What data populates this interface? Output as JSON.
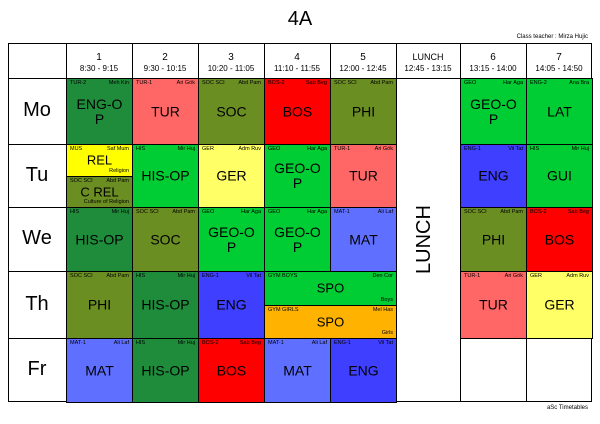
{
  "title": "4A",
  "class_teacher": "Class teacher : Mirza Hujic",
  "footer": "aSc Timetables",
  "periods": [
    {
      "num": "1",
      "time": "8:30 - 9:15"
    },
    {
      "num": "2",
      "time": "9:30 - 10:15"
    },
    {
      "num": "3",
      "time": "10:20 - 11:05"
    },
    {
      "num": "4",
      "time": "11:10 - 11:55"
    },
    {
      "num": "5",
      "time": "12:00 - 12:45"
    },
    {
      "num": "LUNCH",
      "time": "12:45 - 13:15"
    },
    {
      "num": "6",
      "time": "13:15 - 14:00"
    },
    {
      "num": "7",
      "time": "14:05 - 14:50"
    }
  ],
  "lunch_label": "LUNCH",
  "days": [
    "Mo",
    "Tu",
    "We",
    "Th",
    "Fr"
  ],
  "colors": {
    "dark_green": "#1e8c3a",
    "red": "#ff5f5f",
    "olive": "#6b8e23",
    "bright_red": "#ff0000",
    "bright_green": "#00cc33",
    "yellow": "#ffff66",
    "blue": "#4040ff",
    "light_blue": "#5f6fff",
    "orange": "#ffb300"
  },
  "lessons": [
    {
      "day": 0,
      "period": 0,
      "col": 0,
      "span": 1,
      "part": 0,
      "parts": 1,
      "color": "#1e8c3a",
      "tl": "TUR-2",
      "tr": "Meh Kin",
      "subject": "ENG-O P",
      "br": ""
    },
    {
      "day": 0,
      "period": 1,
      "col": 1,
      "span": 1,
      "part": 0,
      "parts": 1,
      "color": "#ff6666",
      "tl": "TUR-1",
      "tr": "Ari Gök",
      "subject": "TUR",
      "br": ""
    },
    {
      "day": 0,
      "period": 2,
      "col": 2,
      "span": 1,
      "part": 0,
      "parts": 1,
      "color": "#6b8e23",
      "tl": "SOC SCI",
      "tr": "Abd Pam",
      "subject": "SOC",
      "br": ""
    },
    {
      "day": 0,
      "period": 3,
      "col": 3,
      "span": 1,
      "part": 0,
      "parts": 1,
      "color": "#ff0000",
      "tl": "BOS-2",
      "tr": "Sab Beg",
      "subject": "BOS",
      "br": ""
    },
    {
      "day": 0,
      "period": 4,
      "col": 4,
      "span": 1,
      "part": 0,
      "parts": 1,
      "color": "#6b8e23",
      "tl": "SOC SCI",
      "tr": "Abd Pam",
      "subject": "PHI",
      "br": ""
    },
    {
      "day": 0,
      "period": 6,
      "col": 6,
      "span": 1,
      "part": 0,
      "parts": 1,
      "color": "#00cc33",
      "tl": "GEO",
      "tr": "Har Aga",
      "subject": "GEO-O P",
      "br": ""
    },
    {
      "day": 0,
      "period": 7,
      "col": 7,
      "span": 1,
      "part": 0,
      "parts": 1,
      "color": "#00cc33",
      "tl": "ENG-2",
      "tr": "Ana Bra",
      "subject": "LAT",
      "br": ""
    },
    {
      "day": 1,
      "period": 0,
      "col": 0,
      "span": 1,
      "part": 0,
      "parts": 2,
      "color": "#ffff00",
      "tl": "MUS",
      "tr": "Saf Mum",
      "subject": "REL",
      "br": "Religion"
    },
    {
      "day": 1,
      "period": 0,
      "col": 0,
      "span": 1,
      "part": 1,
      "parts": 2,
      "color": "#6b8e23",
      "tl": "SOC SCI",
      "tr": "Abd Pam",
      "subject": "C REL",
      "br": "Culture of Religion"
    },
    {
      "day": 1,
      "period": 1,
      "col": 1,
      "span": 1,
      "part": 0,
      "parts": 1,
      "color": "#00cc33",
      "tl": "HIS",
      "tr": "Mir Huj",
      "subject": "HIS-OP",
      "br": ""
    },
    {
      "day": 1,
      "period": 2,
      "col": 2,
      "span": 1,
      "part": 0,
      "parts": 1,
      "color": "#ffff66",
      "tl": "GER",
      "tr": "Adm Ruv",
      "subject": "GER",
      "br": ""
    },
    {
      "day": 1,
      "period": 3,
      "col": 3,
      "span": 1,
      "part": 0,
      "parts": 1,
      "color": "#00cc33",
      "tl": "GEO",
      "tr": "Har Aga",
      "subject": "GEO-O P",
      "br": ""
    },
    {
      "day": 1,
      "period": 4,
      "col": 4,
      "span": 1,
      "part": 0,
      "parts": 1,
      "color": "#ff6666",
      "tl": "TUR-1",
      "tr": "Ari Gök",
      "subject": "TUR",
      "br": ""
    },
    {
      "day": 1,
      "period": 6,
      "col": 6,
      "span": 1,
      "part": 0,
      "parts": 1,
      "color": "#3f3fff",
      "tl": "ENG-1",
      "tr": "Vil Tat",
      "subject": "ENG",
      "br": ""
    },
    {
      "day": 1,
      "period": 7,
      "col": 7,
      "span": 1,
      "part": 0,
      "parts": 1,
      "color": "#00cc33",
      "tl": "HIS",
      "tr": "Mir Huj",
      "subject": "GUI",
      "br": ""
    },
    {
      "day": 2,
      "period": 0,
      "col": 0,
      "span": 1,
      "part": 0,
      "parts": 1,
      "color": "#1e8c3a",
      "tl": "HIS",
      "tr": "Mir Huj",
      "subject": "HIS-OP",
      "br": ""
    },
    {
      "day": 2,
      "period": 1,
      "col": 1,
      "span": 1,
      "part": 0,
      "parts": 1,
      "color": "#6b8e23",
      "tl": "SOC SCI",
      "tr": "Abd Pam",
      "subject": "SOC",
      "br": ""
    },
    {
      "day": 2,
      "period": 2,
      "col": 2,
      "span": 1,
      "part": 0,
      "parts": 1,
      "color": "#00cc33",
      "tl": "GEO",
      "tr": "Har Aga",
      "subject": "GEO-O P",
      "br": ""
    },
    {
      "day": 2,
      "period": 3,
      "col": 3,
      "span": 1,
      "part": 0,
      "parts": 1,
      "color": "#00cc33",
      "tl": "GEO",
      "tr": "Har Aga",
      "subject": "GEO-O P",
      "br": ""
    },
    {
      "day": 2,
      "period": 4,
      "col": 4,
      "span": 1,
      "part": 0,
      "parts": 1,
      "color": "#5f6fff",
      "tl": "MAT-1",
      "tr": "Ali Laf",
      "subject": "MAT",
      "br": ""
    },
    {
      "day": 2,
      "period": 6,
      "col": 6,
      "span": 1,
      "part": 0,
      "parts": 1,
      "color": "#6b8e23",
      "tl": "SOC SCI",
      "tr": "Abd Pam",
      "subject": "PHI",
      "br": ""
    },
    {
      "day": 2,
      "period": 7,
      "col": 7,
      "span": 1,
      "part": 0,
      "parts": 1,
      "color": "#ff0000",
      "tl": "BOS-2",
      "tr": "Sab Beg",
      "subject": "BOS",
      "br": ""
    },
    {
      "day": 3,
      "period": 0,
      "col": 0,
      "span": 1,
      "part": 0,
      "parts": 1,
      "color": "#6b8e23",
      "tl": "SOC SCI",
      "tr": "Abd Pam",
      "subject": "PHI",
      "br": ""
    },
    {
      "day": 3,
      "period": 1,
      "col": 1,
      "span": 1,
      "part": 0,
      "parts": 1,
      "color": "#1e8c3a",
      "tl": "HIS",
      "tr": "Mir Huj",
      "subject": "HIS-OP",
      "br": ""
    },
    {
      "day": 3,
      "period": 2,
      "col": 2,
      "span": 1,
      "part": 0,
      "parts": 1,
      "color": "#3f3fff",
      "tl": "ENG-1",
      "tr": "Vil Tat",
      "subject": "ENG",
      "br": ""
    },
    {
      "day": 3,
      "period": 3,
      "col": 3,
      "span": 2,
      "part": 0,
      "parts": 2,
      "color": "#00cc33",
      "tl": "GYM BOYS",
      "tr": "Den Cor",
      "subject": "SPO",
      "br": "Boys"
    },
    {
      "day": 3,
      "period": 3,
      "col": 3,
      "span": 2,
      "part": 1,
      "parts": 2,
      "color": "#ffb300",
      "tl": "GYM GIRLS",
      "tr": "Mel Has",
      "subject": "SPO",
      "br": "Girls"
    },
    {
      "day": 3,
      "period": 6,
      "col": 6,
      "span": 1,
      "part": 0,
      "parts": 1,
      "color": "#ff6666",
      "tl": "TUR-1",
      "tr": "Ari Gök",
      "subject": "TUR",
      "br": ""
    },
    {
      "day": 3,
      "period": 7,
      "col": 7,
      "span": 1,
      "part": 0,
      "parts": 1,
      "color": "#ffff66",
      "tl": "GER",
      "tr": "Adm Ruv",
      "subject": "GER",
      "br": ""
    },
    {
      "day": 4,
      "period": 0,
      "col": 0,
      "span": 1,
      "part": 0,
      "parts": 1,
      "color": "#5f6fff",
      "tl": "MAT-1",
      "tr": "Ali Laf",
      "subject": "MAT",
      "br": ""
    },
    {
      "day": 4,
      "period": 1,
      "col": 1,
      "span": 1,
      "part": 0,
      "parts": 1,
      "color": "#1e8c3a",
      "tl": "HIS",
      "tr": "Mir Huj",
      "subject": "HIS-OP",
      "br": ""
    },
    {
      "day": 4,
      "period": 2,
      "col": 2,
      "span": 1,
      "part": 0,
      "parts": 1,
      "color": "#ff0000",
      "tl": "BOS-2",
      "tr": "Sab Beg",
      "subject": "BOS",
      "br": ""
    },
    {
      "day": 4,
      "period": 3,
      "col": 3,
      "span": 1,
      "part": 0,
      "parts": 1,
      "color": "#5f6fff",
      "tl": "MAT-1",
      "tr": "Ali Laf",
      "subject": "MAT",
      "br": ""
    },
    {
      "day": 4,
      "period": 4,
      "col": 4,
      "span": 1,
      "part": 0,
      "parts": 1,
      "color": "#3f3fff",
      "tl": "ENG-1",
      "tr": "Vil Tat",
      "subject": "ENG",
      "br": ""
    }
  ]
}
